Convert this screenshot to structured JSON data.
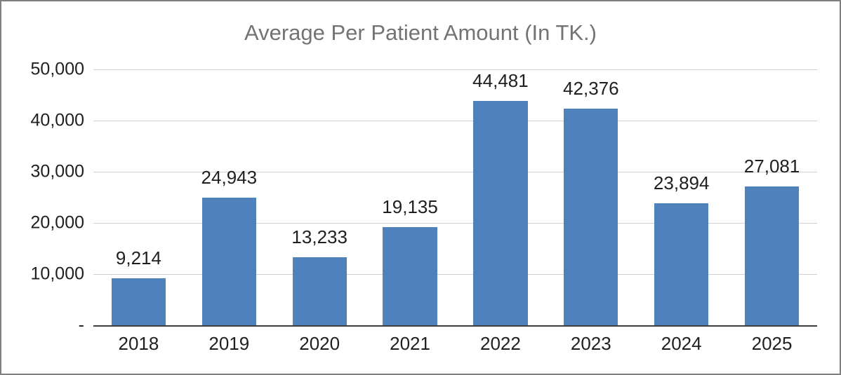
{
  "chart_data": {
    "type": "bar",
    "title": "Average Per Patient Amount (In TK.)",
    "categories": [
      "2018",
      "2019",
      "2020",
      "2021",
      "2022",
      "2023",
      "2024",
      "2025"
    ],
    "values": [
      9214,
      24943,
      13233,
      19135,
      44481,
      42376,
      23894,
      27081
    ],
    "value_labels": [
      "9,214",
      "24,943",
      "13,233",
      "19,135",
      "44,481",
      "42,376",
      "23,894",
      "27,081"
    ],
    "xlabel": "",
    "ylabel": "",
    "ylim": [
      0,
      50000
    ],
    "y_ticks": [
      {
        "value": 50000,
        "label": "50,000"
      },
      {
        "value": 40000,
        "label": "40,000"
      },
      {
        "value": 30000,
        "label": "30,000"
      },
      {
        "value": 20000,
        "label": "20,000"
      },
      {
        "value": 10000,
        "label": "10,000"
      },
      {
        "value": 0,
        "label": "-"
      }
    ],
    "grid": true,
    "legend": "none",
    "colors": {
      "bar": "#4F81BD",
      "title": "#737373",
      "axis_text": "#1F1F1F",
      "gridline": "#D0D0D0",
      "axis_line": "#3F3F3F",
      "chart_border": "#7F7F7F",
      "background": "#FFFFFF"
    }
  }
}
